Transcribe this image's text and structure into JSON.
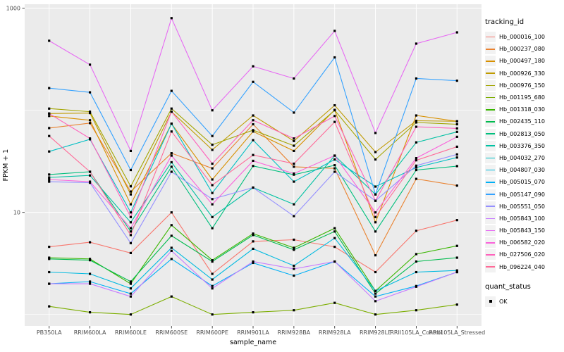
{
  "chart_data": {
    "type": "line",
    "title": "",
    "xlabel": "sample_name",
    "ylabel": "FPKM + 1",
    "y_scale": "log10",
    "y_ticks": [
      10,
      1000
    ],
    "y_minor_gridlines": [
      1,
      100
    ],
    "ylim": [
      0.78,
      1100
    ],
    "legend_position": "right",
    "grid": true,
    "categories": [
      "PB350LA",
      "RRIM600LA",
      "RRIM600LE",
      "RRIM600SE",
      "RRIM600PE",
      "RRIM901LA",
      "RRIM928BA",
      "RRIM928LA",
      "RRIM928LE",
      "RRII105LA_Control",
      "RRII105LA_Stressed"
    ],
    "series": [
      {
        "name": "Hb_000016_100",
        "color": "#F8766D",
        "values": [
          4.6,
          5.1,
          4.0,
          10,
          2.5,
          5.2,
          5.4,
          4.6,
          2.6,
          6.6,
          8.4
        ]
      },
      {
        "name": "Hb_000237_080",
        "color": "#EA8331",
        "values": [
          67,
          75,
          16,
          38,
          27,
          73,
          28,
          27,
          3.8,
          21.3,
          18.3
        ]
      },
      {
        "name": "Hb_000497_180",
        "color": "#D89000",
        "values": [
          88,
          80,
          12,
          74,
          21,
          62,
          40,
          101,
          8,
          89,
          78
        ]
      },
      {
        "name": "Hb_000926_330",
        "color": "#C09B00",
        "values": [
          93,
          94,
          15,
          97,
          41,
          89,
          50,
          112,
          39,
          79,
          78
        ]
      },
      {
        "name": "Hb_000976_150",
        "color": "#A3A500",
        "values": [
          104,
          97,
          18,
          104,
          46,
          64,
          45,
          100,
          33,
          76,
          73
        ]
      },
      {
        "name": "Hb_001195_680",
        "color": "#7CAE00",
        "values": [
          1.2,
          1.05,
          1.0,
          1.5,
          1.0,
          1.05,
          1.1,
          1.3,
          1.0,
          1.1,
          1.25
        ]
      },
      {
        "name": "Hb_001318_030",
        "color": "#39B600",
        "values": [
          3.6,
          3.5,
          2.0,
          7.5,
          3.4,
          6.2,
          4.5,
          7.0,
          1.7,
          3.9,
          4.7
        ]
      },
      {
        "name": "Hb_002435_110",
        "color": "#00BB4E",
        "values": [
          3.5,
          3.4,
          2.1,
          5.9,
          3.3,
          6.0,
          4.3,
          6.5,
          1.6,
          3.3,
          3.6
        ]
      },
      {
        "name": "Hb_002813_050",
        "color": "#00BF7D",
        "values": [
          23.5,
          25,
          6.5,
          28,
          7.0,
          28.5,
          23.4,
          29,
          6.5,
          26,
          28.4
        ]
      },
      {
        "name": "Hb_003376_350",
        "color": "#00C1A3",
        "values": [
          22,
          23,
          8.0,
          31,
          9.0,
          17.5,
          12,
          36,
          15,
          48.5,
          61.5
        ]
      },
      {
        "name": "Hb_004032_270",
        "color": "#00BFC4",
        "values": [
          39.5,
          52,
          10,
          74,
          15.5,
          51,
          20,
          33,
          17.9,
          27.5,
          34.5
        ]
      },
      {
        "name": "Hb_004807_030",
        "color": "#00BAE0",
        "values": [
          2.6,
          2.5,
          1.8,
          4.5,
          2.2,
          4.4,
          3.0,
          5.6,
          1.7,
          2.6,
          2.7
        ]
      },
      {
        "name": "Hb_005015_070",
        "color": "#00B0F6",
        "values": [
          2.0,
          2.1,
          1.6,
          3.5,
          1.9,
          3.2,
          2.4,
          3.3,
          1.5,
          1.9,
          2.6
        ]
      },
      {
        "name": "Hb_005147_090",
        "color": "#35A2FF",
        "values": [
          165,
          150,
          26,
          155,
          56,
          190,
          95,
          330,
          15,
          205,
          195
        ]
      },
      {
        "name": "Hb_005551_050",
        "color": "#9590FF",
        "values": [
          20,
          19.5,
          5.0,
          25,
          13.5,
          17.5,
          9.2,
          25,
          13,
          28.7,
          37
        ]
      },
      {
        "name": "Hb_005843_100",
        "color": "#C77CFF",
        "values": [
          2.0,
          2.0,
          1.5,
          4.2,
          1.8,
          3.3,
          2.8,
          3.3,
          1.35,
          1.87,
          2.6
        ]
      },
      {
        "name": "Hb_005843_150",
        "color": "#E76BF3",
        "values": [
          480,
          280,
          40,
          800,
          100,
          270,
          205,
          600,
          60,
          450,
          580
        ]
      },
      {
        "name": "Hb_006582_020",
        "color": "#FA62DB",
        "values": [
          21,
          20,
          7.0,
          36,
          12,
          32,
          24,
          36,
          10,
          34,
          55
        ]
      },
      {
        "name": "Hb_027506_020",
        "color": "#FF62BC",
        "values": [
          93,
          53,
          9.0,
          97,
          30,
          80,
          53,
          88,
          13,
          69,
          66.5
        ]
      },
      {
        "name": "Hb_096224_040",
        "color": "#FF6A98",
        "values": [
          56,
          25,
          6.0,
          62,
          18.5,
          36.5,
          30,
          77,
          9.0,
          32.4,
          44
        ]
      }
    ],
    "legend": {
      "tracking_title": "tracking_id",
      "quant_title": "quant_status",
      "quant_ok_label": "OK",
      "point_shape": "filled-square",
      "point_color": "#000000"
    },
    "style": {
      "panel_bg": "#EBEBEB",
      "grid_color": "#FFFFFF",
      "axis_text_color": "#4D4D4D",
      "axis_title_color": "#000000",
      "tick_color": "#333333",
      "key_bg": "#F2F2F2"
    }
  }
}
